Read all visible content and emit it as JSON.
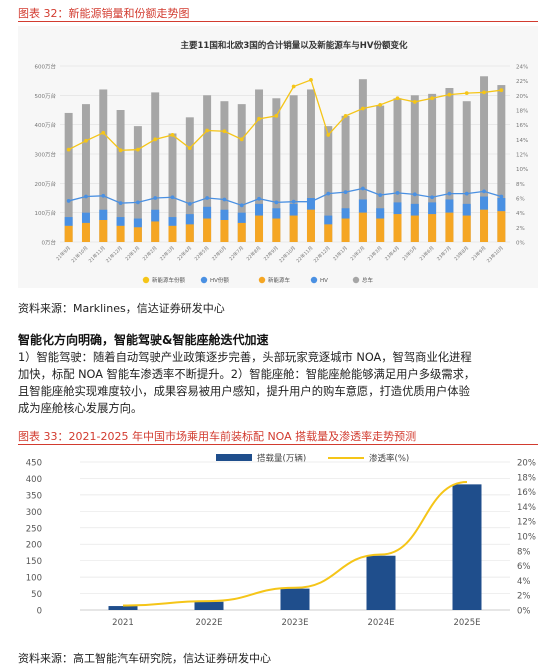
{
  "figure32": {
    "caption": "图表 32：新能源销量和份额走势图",
    "title": "主要11国和北欧3国的合计销量以及新能源车与HV份额变化",
    "y_left_ticks": [
      "0万台",
      "100万台",
      "200万台",
      "300万台",
      "400万台",
      "500万台",
      "600万台"
    ],
    "y_right_ticks": [
      "0%",
      "2%",
      "4%",
      "6%",
      "8%",
      "10%",
      "12%",
      "14%",
      "16%",
      "18%",
      "20%",
      "22%",
      "24%"
    ],
    "legend": [
      "新能源车份额",
      "HV份额",
      "新能源车",
      "HV",
      "总车"
    ],
    "source": "资料来源：Marklines，信达证券研发中心"
  },
  "section": {
    "heading": "智能化方向明确，智能驾驶&智能座舱迭代加速",
    "lines": [
      "1）智能驾驶：随着自动驾驶产业政策逐步完善，头部玩家竞逐城市 NOA，智驾商业化进程",
      "加快，标配 NOA 智能车渗透率不断提升。2）智能座舱：智能座舱能够满足用户多级需求，",
      "且智能座舱实现难度较小，成果容易被用户感知，提升用户的购车意愿，打造优质用户体验",
      "成为座舱核心发展方向。"
    ]
  },
  "figure33": {
    "caption": "图表 33：2021-2025 年中国市场乘用车前装标配 NOA 搭载量及渗透率走势预测",
    "source": "资料来源：高工智能汽车研究院，信达证券研发中心"
  },
  "colors": {
    "accent": "#d23b2f",
    "bar_blue": "#1f4e8c",
    "line_yellow": "#f5c518",
    "total_gray": "#a6a6a6",
    "nev_orange": "#f5a623",
    "hv_blue": "#4a90e2"
  },
  "chart_data": [
    {
      "type": "bar",
      "title": "主要11国和北欧3国的合计销量以及新能源车与HV份额变化",
      "categories": [
        "21年9月",
        "21年10月",
        "21年11月",
        "21年12月",
        "22年1月",
        "22年2月",
        "22年3月",
        "22年4月",
        "22年5月",
        "22年6月",
        "22年7月",
        "22年8月",
        "22年9月",
        "22年10月",
        "22年11月",
        "22年12月",
        "23年1月",
        "23年2月",
        "23年3月",
        "23年4月",
        "23年5月",
        "23年6月",
        "23年7月",
        "23年8月",
        "23年9月",
        "23年10月"
      ],
      "ylim": [
        0,
        600
      ],
      "y2lim": [
        0,
        24
      ],
      "series": [
        {
          "name": "总车",
          "kind": "bar",
          "values": [
            440,
            470,
            520,
            450,
            395,
            510,
            370,
            425,
            500,
            480,
            470,
            520,
            490,
            500,
            520,
            395,
            430,
            555,
            465,
            490,
            500,
            505,
            525,
            480,
            565,
            535
          ]
        },
        {
          "name": "HV",
          "kind": "bar",
          "values": [
            30,
            35,
            35,
            30,
            30,
            40,
            30,
            35,
            40,
            35,
            35,
            40,
            35,
            40,
            40,
            30,
            35,
            45,
            35,
            40,
            40,
            40,
            45,
            40,
            45,
            45
          ]
        },
        {
          "name": "新能源车",
          "kind": "bar",
          "values": [
            55,
            65,
            75,
            55,
            50,
            70,
            55,
            60,
            80,
            75,
            65,
            90,
            80,
            90,
            110,
            60,
            80,
            100,
            80,
            95,
            90,
            95,
            100,
            90,
            110,
            105
          ]
        },
        {
          "name": "新能源车份额",
          "kind": "line",
          "values": [
            12.6,
            13.8,
            14.9,
            12.5,
            12.6,
            14.0,
            14.6,
            12.8,
            15.2,
            15.1,
            14.0,
            16.8,
            17.2,
            21.2,
            22.1,
            14.6,
            17.2,
            18.2,
            18.7,
            19.6,
            19.1,
            19.6,
            20.1,
            20.3,
            20.4,
            20.7
          ]
        },
        {
          "name": "HV份额",
          "kind": "line",
          "values": [
            5.6,
            6.2,
            6.3,
            5.3,
            5.4,
            6.0,
            6.1,
            5.2,
            6.0,
            5.8,
            5.0,
            5.9,
            5.4,
            5.5,
            5.5,
            6.6,
            6.8,
            7.3,
            6.4,
            6.7,
            6.5,
            6.1,
            6.6,
            6.6,
            6.9,
            6.2
          ]
        }
      ]
    },
    {
      "type": "bar",
      "categories": [
        "2021",
        "2022E",
        "2023E",
        "2024E",
        "2025E"
      ],
      "ylim": [
        0,
        450
      ],
      "y2lim": [
        0,
        0.2
      ],
      "y_left_ticks": [
        "0",
        "50",
        "100",
        "150",
        "200",
        "250",
        "300",
        "350",
        "400",
        "450"
      ],
      "y_right_ticks": [
        "0%",
        "2%",
        "4%",
        "6%",
        "8%",
        "10%",
        "12%",
        "14%",
        "16%",
        "18%",
        "20%"
      ],
      "series": [
        {
          "name": "搭载量(万辆)",
          "kind": "bar",
          "values": [
            12,
            25,
            65,
            165,
            382
          ]
        },
        {
          "name": "渗透率(%)",
          "kind": "line",
          "values": [
            0.006,
            0.012,
            0.03,
            0.075,
            0.173
          ]
        }
      ]
    }
  ]
}
